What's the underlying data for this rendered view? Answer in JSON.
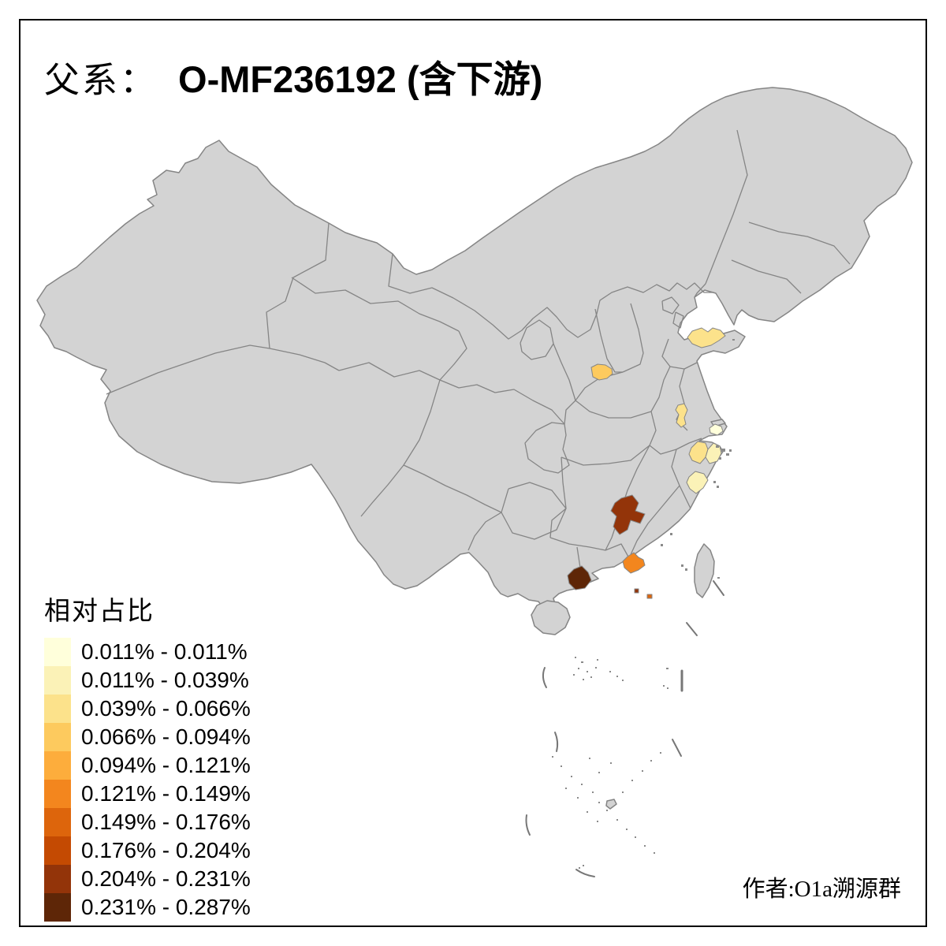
{
  "title": {
    "prefix": "父系：",
    "main": "O-MF236192 (含下游)"
  },
  "legend": {
    "title": "相对占比",
    "classes": [
      {
        "label": "0.011% - 0.011%",
        "color": "#FFFFDB"
      },
      {
        "label": "0.011% - 0.039%",
        "color": "#FBF2B7"
      },
      {
        "label": "0.039% - 0.066%",
        "color": "#FCE28B"
      },
      {
        "label": "0.066% - 0.094%",
        "color": "#FDCA5E"
      },
      {
        "label": "0.094% - 0.121%",
        "color": "#FDAD3C"
      },
      {
        "label": "0.121% - 0.149%",
        "color": "#F3861E"
      },
      {
        "label": "0.149% - 0.176%",
        "color": "#DD650C"
      },
      {
        "label": "0.176% - 0.204%",
        "color": "#C44A02"
      },
      {
        "label": "0.204% - 0.231%",
        "color": "#933409"
      },
      {
        "label": "0.231% - 0.287%",
        "color": "#5E2607"
      }
    ]
  },
  "attribution": {
    "text": "作者:O1a溯源群"
  },
  "map": {
    "base_fill": "#D3D3D3",
    "border_color": "#858585",
    "background": "#FFFFFF",
    "highlighted_regions": [
      {
        "name": "shandong-central",
        "class_index": 2
      },
      {
        "name": "henan-central",
        "class_index": 3
      },
      {
        "name": "jiangsu-central",
        "class_index": 2
      },
      {
        "name": "shanghai",
        "class_index": 0
      },
      {
        "name": "zhejiang-northwest",
        "class_index": 2
      },
      {
        "name": "zhejiang-northeast",
        "class_index": 1
      },
      {
        "name": "zhejiang-south",
        "class_index": 1
      },
      {
        "name": "jiangxi-south",
        "class_index": 8
      },
      {
        "name": "guangdong-east-coast",
        "class_index": 5
      },
      {
        "name": "guangdong-west",
        "class_index": 9
      },
      {
        "name": "pearl-estuary-dot-west",
        "class_index": 8
      },
      {
        "name": "pearl-estuary-dot-east",
        "class_index": 6
      }
    ]
  }
}
